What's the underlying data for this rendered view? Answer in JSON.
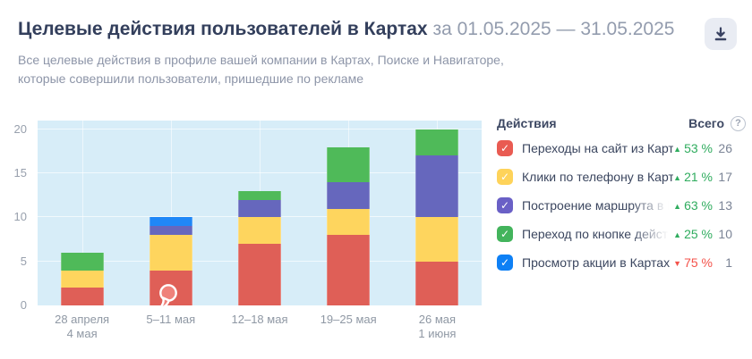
{
  "header": {
    "title": "Целевые действия пользователей в Картах",
    "period": "за 01.05.2025 — 31.05.2025",
    "subtitle": "Все целевые действия в профиле вашей компании в Картах, Поиске и Навигаторе, которые совершили пользователи, пришедшие по рекламе"
  },
  "legend": {
    "col_actions": "Действия",
    "col_total": "Всего",
    "help_text": "?",
    "trend_up_color": "#2fac5e",
    "trend_down_color": "#f4524a",
    "check_glyph": "✓",
    "rows": [
      {
        "label": "Переходы на сайт из Карт",
        "color": "#e95b52",
        "trend_dir": "up",
        "trend": "53 %",
        "total": "26",
        "truncated": false
      },
      {
        "label": "Клики по телефону в Картах",
        "color": "#fed35a",
        "trend_dir": "up",
        "trend": "21 %",
        "total": "17",
        "truncated": false
      },
      {
        "label": "Построение маршрута в Картах",
        "color": "#6a60c6",
        "trend_dir": "up",
        "trend": "63 %",
        "total": "13",
        "truncated": true
      },
      {
        "label": "Переход по кнопке действия из",
        "color": "#43b45c",
        "trend_dir": "up",
        "trend": "25 %",
        "total": "10",
        "truncated": true
      },
      {
        "label": "Просмотр акции в Картах",
        "color": "#0e80f5",
        "trend_dir": "down",
        "trend": "75 %",
        "total": "1",
        "truncated": false
      }
    ]
  },
  "chart_data": {
    "type": "bar",
    "stacked": true,
    "title": "Целевые действия пользователей в Картах",
    "categories": [
      [
        "28 апреля",
        "4 мая"
      ],
      [
        "5–11 мая"
      ],
      [
        "12–18 мая"
      ],
      [
        "19–25 мая"
      ],
      [
        "26 мая",
        "1 июня"
      ]
    ],
    "series": [
      {
        "name": "Переходы на сайт из Карт",
        "color": "#df5f57",
        "values": [
          2,
          4,
          7,
          8,
          5
        ]
      },
      {
        "name": "Клики по телефону в Картах",
        "color": "#fed55e",
        "values": [
          2,
          4,
          3,
          3,
          5
        ]
      },
      {
        "name": "Построение маршрута в Картах",
        "color": "#6667bd",
        "values": [
          0,
          1,
          2,
          3,
          7
        ]
      },
      {
        "name": "Переход по кнопке действия",
        "color": "#4fba59",
        "values": [
          2,
          0,
          1,
          4,
          3
        ]
      },
      {
        "name": "Просмотр акции в Картах",
        "color": "#1f87f7",
        "values": [
          0,
          1,
          0,
          0,
          0
        ]
      }
    ],
    "y_ticks": [
      0,
      5,
      10,
      15,
      20
    ],
    "ylim": [
      0,
      21
    ],
    "plot_bg": "#d7edf8",
    "grid": true,
    "legend_position": "right",
    "annotation": {
      "type": "balloon-marker",
      "category_index": 1,
      "color": "#ef827b"
    }
  }
}
